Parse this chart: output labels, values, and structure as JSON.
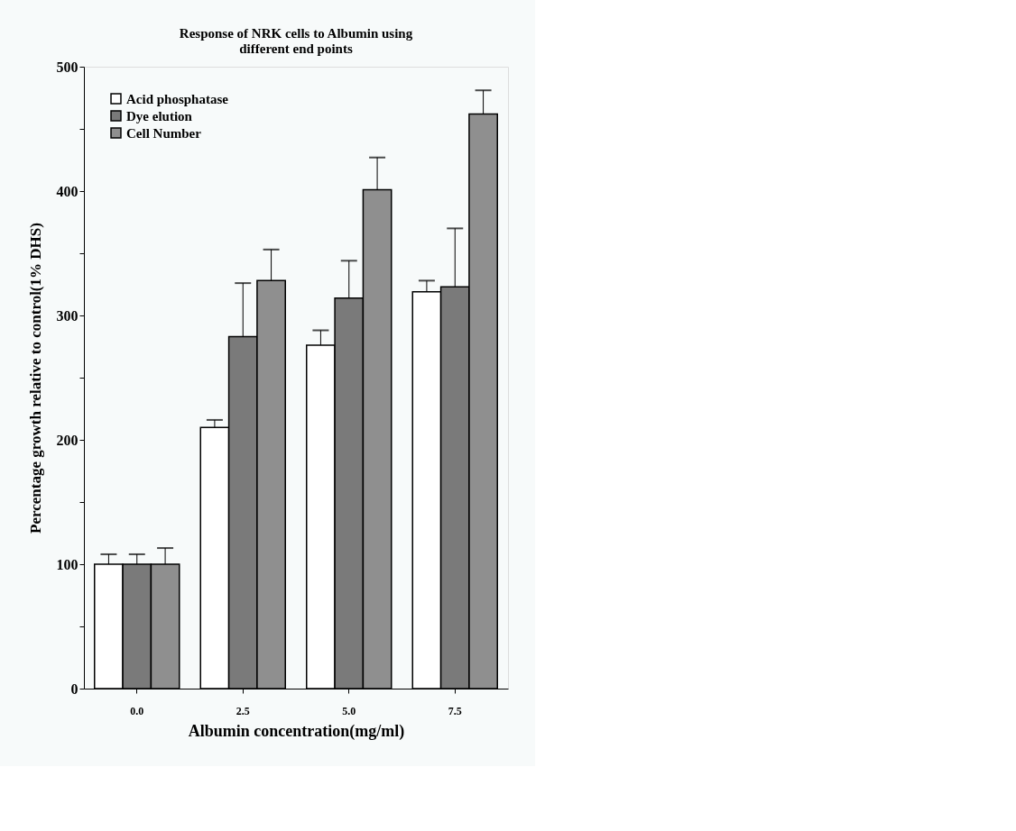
{
  "chart_data": {
    "type": "bar",
    "title": "Response of NRK cells to Albumin using\ndifferent end points",
    "xlabel": "Albumin concentration(mg/ml)",
    "ylabel": "Percentage growth relative to control(1% DHS)",
    "categories": [
      "0.0",
      "2.5",
      "5.0",
      "7.5"
    ],
    "series": [
      {
        "name": "Acid phosphatase",
        "color": "#ffffff",
        "values": [
          100,
          210,
          276,
          319
        ],
        "errors": [
          8,
          6,
          12,
          9
        ]
      },
      {
        "name": "Dye elution",
        "color": "#7a7a7a",
        "values": [
          100,
          283,
          314,
          323
        ],
        "errors": [
          8,
          43,
          30,
          47
        ]
      },
      {
        "name": "Cell Number",
        "color": "#8f8f8f",
        "values": [
          100,
          328,
          401,
          462
        ],
        "errors": [
          13,
          25,
          26,
          19
        ]
      }
    ],
    "ylim": [
      0,
      500
    ],
    "yticks": [
      0,
      {
        "value": 50,
        "label": null
      },
      100,
      {
        "value": 150,
        "label": null
      },
      200,
      {
        "value": 250,
        "label": null
      },
      300,
      {
        "value": 350,
        "label": null
      },
      400,
      {
        "value": 450,
        "label": null
      },
      500
    ],
    "grid": false,
    "legend": "top left"
  }
}
